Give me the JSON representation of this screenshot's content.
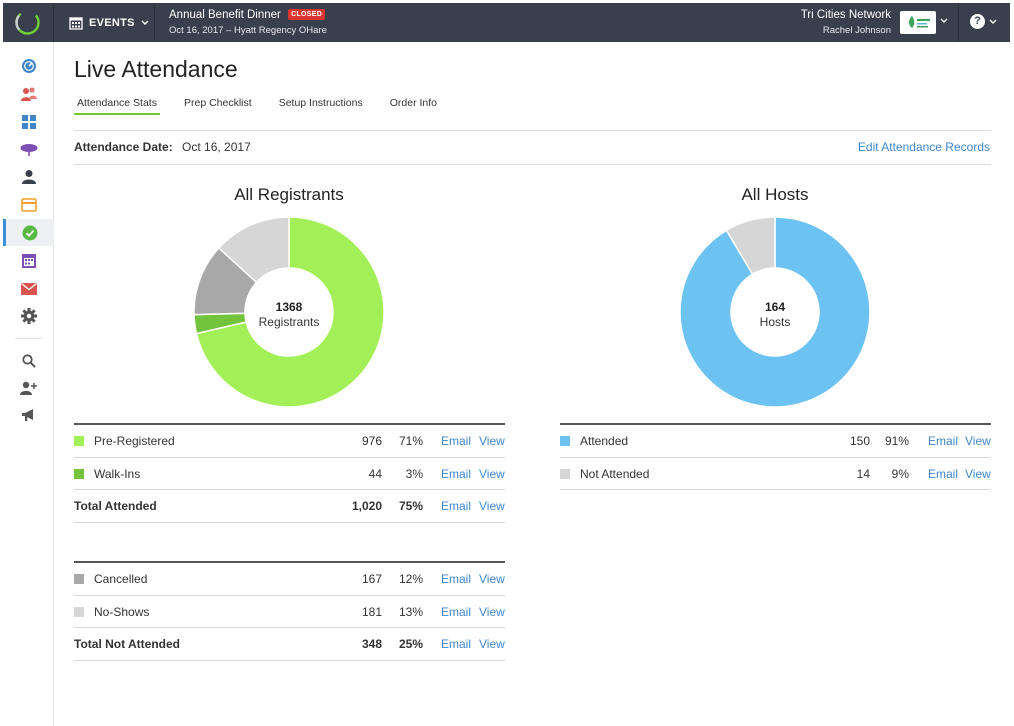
{
  "header": {
    "events_label": "EVENTS",
    "event_title": "Annual Benefit Dinner",
    "event_status": "CLOSED",
    "event_subtitle": "Oct 16, 2017 – Hyatt Regency OHare",
    "org_name": "Tri Cities Network",
    "user_name": "Rachel Johnson",
    "help_glyph": "?"
  },
  "sidebar": {
    "icons": [
      "dashboard-icon",
      "contacts-icon",
      "modules-icon",
      "tables-icon",
      "person-icon",
      "ticket-icon",
      "check-icon",
      "calendar-icon",
      "mail-icon",
      "settings-icon",
      "search-icon",
      "add-user-icon",
      "megaphone-icon"
    ],
    "active": "check-icon"
  },
  "page": {
    "title": "Live Attendance",
    "tabs": [
      "Attendance Stats",
      "Prep Checklist",
      "Setup Instructions",
      "Order Info"
    ],
    "active_tab": "Attendance Stats",
    "attendance_date_label": "Attendance Date:",
    "attendance_date_value": "Oct 16, 2017",
    "edit_link": "Edit Attendance Records"
  },
  "colors": {
    "pre_registered": "#a3ef57",
    "walk_ins": "#73c43c",
    "cancelled": "#a8a8a8",
    "no_shows": "#d6d6d6",
    "attended": "#6cc3f2",
    "not_attended": "#d6d6d6",
    "link": "#3f86c9"
  },
  "registrants": {
    "title": "All Registrants",
    "center_value": "1368",
    "center_label": "Registrants",
    "attended_rows": [
      {
        "name": "Pre-Registered",
        "count": "976",
        "pct": "71%",
        "color": "#a3ef57"
      },
      {
        "name": "Walk-Ins",
        "count": "44",
        "pct": "3%",
        "color": "#73c43c"
      }
    ],
    "attended_total": {
      "name": "Total Attended",
      "count": "1,020",
      "pct": "75%"
    },
    "not_attended_rows": [
      {
        "name": "Cancelled",
        "count": "167",
        "pct": "12%",
        "color": "#a8a8a8"
      },
      {
        "name": "No-Shows",
        "count": "181",
        "pct": "13%",
        "color": "#d6d6d6"
      }
    ],
    "not_attended_total": {
      "name": "Total Not Attended",
      "count": "348",
      "pct": "25%"
    }
  },
  "hosts": {
    "title": "All Hosts",
    "center_value": "164",
    "center_label": "Hosts",
    "rows": [
      {
        "name": "Attended",
        "count": "150",
        "pct": "91%",
        "color": "#6cc3f2"
      },
      {
        "name": "Not Attended",
        "count": "14",
        "pct": "9%",
        "color": "#d6d6d6"
      }
    ]
  },
  "actions": {
    "email": "Email",
    "view": "View"
  },
  "chart_data": [
    {
      "type": "pie",
      "title": "All Registrants",
      "categories": [
        "Pre-Registered",
        "Walk-Ins",
        "Cancelled",
        "No-Shows"
      ],
      "values": [
        976,
        44,
        167,
        181
      ],
      "colors": [
        "#a3ef57",
        "#73c43c",
        "#a8a8a8",
        "#d6d6d6"
      ]
    },
    {
      "type": "pie",
      "title": "All Hosts",
      "categories": [
        "Attended",
        "Not Attended"
      ],
      "values": [
        150,
        14
      ],
      "colors": [
        "#6cc3f2",
        "#d6d6d6"
      ]
    }
  ]
}
